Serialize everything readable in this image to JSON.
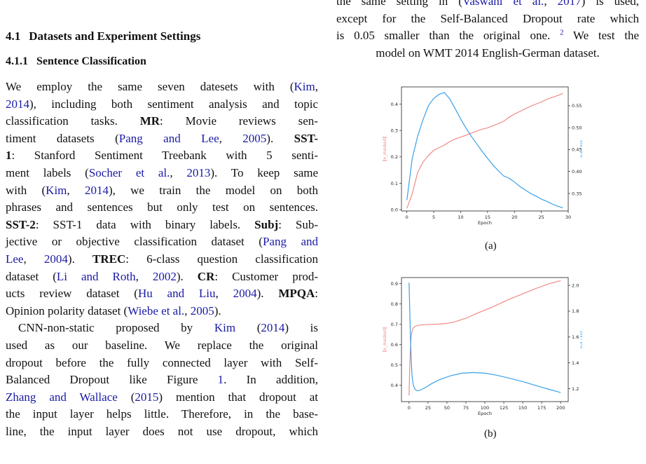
{
  "section": {
    "number": "4.1",
    "title": "Datasets and Experiment Settings"
  },
  "subsection": {
    "number": "4.1.1",
    "title": "Sentence Classification"
  },
  "left_lines": [
    [
      "We employ the same seven datesets with (",
      {
        "link": "Kim"
      },
      ","
    ],
    [
      {
        "link": "2014"
      },
      "), including both sentiment analysis and topic"
    ],
    [
      "classification tasks. ",
      {
        "bold": "MR"
      },
      ": Movie reviews sen-"
    ],
    [
      "timent datasets (",
      {
        "link": "Pang and Lee"
      },
      ", ",
      {
        "link": "2005"
      },
      "). ",
      {
        "bold": "SST-"
      }
    ],
    [
      {
        "bold": "1"
      },
      ": Stanford Sentiment Treebank with 5 senti-"
    ],
    [
      "ment labels (",
      {
        "link": "Socher et al."
      },
      ", ",
      {
        "link": "2013"
      },
      "). To keep same"
    ],
    [
      "with (",
      {
        "link": "Kim"
      },
      ", ",
      {
        "link": "2014"
      },
      "), we train the model on both"
    ],
    [
      "phrases and sentences but only test on sentences."
    ],
    [
      {
        "bold": "SST-2"
      },
      ": SST-1 data with binary labels. ",
      {
        "bold": "Subj"
      },
      ": Sub-"
    ],
    [
      "jective or objective classification dataset (",
      {
        "link": "Pang and"
      }
    ],
    [
      {
        "link": "Lee"
      },
      ", ",
      {
        "link": "2004"
      },
      "). ",
      {
        "bold": "TREC"
      },
      ": 6-class question classification"
    ],
    [
      "dataset (",
      {
        "link": "Li and Roth"
      },
      ", ",
      {
        "link": "2002"
      },
      "). ",
      {
        "bold": "CR"
      },
      ": Customer prod-"
    ],
    [
      "ucts review dataset (",
      {
        "link": "Hu and Liu"
      },
      ", ",
      {
        "link": "2004"
      },
      "). ",
      {
        "bold": "MPQA"
      },
      ":"
    ],
    [
      "Opinion polarity dataset (",
      {
        "link": "Wiebe et al."
      },
      ", ",
      {
        "link": "2005"
      },
      ")."
    ],
    [
      "CNN-non-static proposed by ",
      {
        "link": "Kim"
      },
      " (",
      {
        "link": "2014"
      },
      ") is"
    ],
    [
      "used as our baseline.  We replace the original"
    ],
    [
      "dropout before the fully connected layer with Self-"
    ],
    [
      "Balanced Dropout like Figure ",
      {
        "link": "1"
      },
      ".  In addition,"
    ],
    [
      {
        "link": "Zhang and Wallace"
      },
      " (",
      {
        "link": "2015"
      },
      ") mention that dropout at"
    ],
    [
      "the input layer helps little. Therefore, in the base-"
    ],
    [
      "line, the input layer does not use dropout, which"
    ]
  ],
  "right_lines": [
    [
      "the same setting in  (",
      {
        "link": "Vaswani et al."
      },
      ", ",
      {
        "link": "2017"
      },
      ") is used,"
    ],
    [
      "except for the Self-Balanced Dropout rate which"
    ],
    [
      "is 0.05 smaller than the original one. ",
      {
        "sup": "2"
      },
      " We test the"
    ],
    [
      "model on WMT 2014 English-German dataset."
    ]
  ],
  "figures": {
    "a": {
      "caption": "(a)",
      "chart_data": {
        "type": "line",
        "xlabel": "Epoch",
        "xlim": [
          -1,
          30
        ],
        "x_ticks": [
          0,
          5,
          10,
          15,
          20,
          25,
          30
        ],
        "left_axis": {
          "label": "‖x_masked‖",
          "ylim": [
            -0.005,
            0.465
          ],
          "ticks": [
            0.0,
            0.1,
            0.2,
            0.3,
            0.4
          ],
          "tick_labels": [
            "0.0",
            "0.1",
            "0.2",
            "0.3",
            "0.4"
          ],
          "color": "#f08a86"
        },
        "right_axis": {
          "label": "‖x‖ / ‖x̂‖",
          "ylim": [
            0.31,
            0.593
          ],
          "ticks": [
            0.35,
            0.4,
            0.45,
            0.5,
            0.55
          ],
          "tick_labels": [
            "0.35",
            "0.40",
            "0.45",
            "0.50",
            "0.55"
          ],
          "color": "#3aa0e8"
        },
        "series": [
          {
            "axis": "left",
            "color": "#f08a86",
            "x": [
              0,
              1,
              2,
              3,
              4,
              5,
              6,
              7,
              8,
              9,
              10,
              11,
              12,
              13,
              14,
              15,
              16,
              17,
              18,
              19,
              20,
              21,
              22,
              23,
              24,
              25,
              26,
              27,
              28,
              29
            ],
            "values": [
              0.005,
              0.06,
              0.14,
              0.18,
              0.205,
              0.225,
              0.235,
              0.245,
              0.258,
              0.268,
              0.275,
              0.282,
              0.29,
              0.298,
              0.305,
              0.31,
              0.318,
              0.326,
              0.335,
              0.35,
              0.362,
              0.372,
              0.382,
              0.392,
              0.4,
              0.408,
              0.418,
              0.425,
              0.432,
              0.44
            ]
          },
          {
            "axis": "right",
            "color": "#3aa0e8",
            "x": [
              0,
              1,
              2,
              3,
              4,
              5,
              6,
              7,
              8,
              9,
              10,
              11,
              12,
              13,
              14,
              15,
              16,
              17,
              18,
              19,
              20,
              21,
              22,
              23,
              24,
              25,
              26,
              27,
              28,
              29
            ],
            "values": [
              0.335,
              0.43,
              0.48,
              0.518,
              0.55,
              0.567,
              0.576,
              0.58,
              0.565,
              0.543,
              0.52,
              0.499,
              0.48,
              0.463,
              0.446,
              0.43,
              0.415,
              0.402,
              0.39,
              0.385,
              0.376,
              0.366,
              0.358,
              0.35,
              0.344,
              0.337,
              0.332,
              0.326,
              0.321,
              0.317
            ]
          }
        ]
      }
    },
    "b": {
      "caption": "(b)",
      "chart_data": {
        "type": "line",
        "xlabel": "Epoch",
        "xlim": [
          -10,
          210
        ],
        "x_ticks": [
          0,
          25,
          50,
          75,
          100,
          125,
          150,
          175,
          200
        ],
        "left_axis": {
          "label": "‖x_masked‖",
          "ylim": [
            0.32,
            0.93
          ],
          "ticks": [
            0.4,
            0.5,
            0.6,
            0.7,
            0.8,
            0.9
          ],
          "tick_labels": [
            "0.4",
            "0.5",
            "0.6",
            "0.7",
            "0.8",
            "0.9"
          ],
          "color": "#f08a86"
        },
        "right_axis": {
          "label": "‖x‖ / ‖x̂‖",
          "ylim": [
            1.1,
            2.06
          ],
          "ticks": [
            1.2,
            1.4,
            1.6,
            1.8,
            2.0
          ],
          "tick_labels": [
            "1.2",
            "1.4",
            "1.6",
            "1.8",
            "2.0"
          ],
          "color": "#3aa0e8"
        },
        "series": [
          {
            "axis": "left",
            "color": "#f08a86",
            "x": [
              0,
              1,
              2,
              3,
              5,
              8,
              12,
              20,
              30,
              40,
              50,
              60,
              75,
              90,
              110,
              130,
              150,
              170,
              185,
              200
            ],
            "values": [
              0.35,
              0.5,
              0.6,
              0.65,
              0.68,
              0.69,
              0.695,
              0.698,
              0.7,
              0.701,
              0.705,
              0.712,
              0.73,
              0.755,
              0.785,
              0.82,
              0.85,
              0.88,
              0.9,
              0.915
            ]
          },
          {
            "axis": "right",
            "color": "#3aa0e8",
            "x": [
              0,
              1,
              2,
              3,
              4,
              5,
              6,
              8,
              10,
              13,
              17,
              22,
              30,
              40,
              55,
              70,
              85,
              100,
              115,
              130,
              150,
              170,
              185,
              200
            ],
            "values": [
              2.02,
              1.8,
              1.55,
              1.4,
              1.3,
              1.25,
              1.22,
              1.195,
              1.185,
              1.185,
              1.195,
              1.21,
              1.24,
              1.27,
              1.3,
              1.32,
              1.325,
              1.32,
              1.305,
              1.285,
              1.255,
              1.22,
              1.195,
              1.17
            ]
          }
        ]
      }
    }
  }
}
